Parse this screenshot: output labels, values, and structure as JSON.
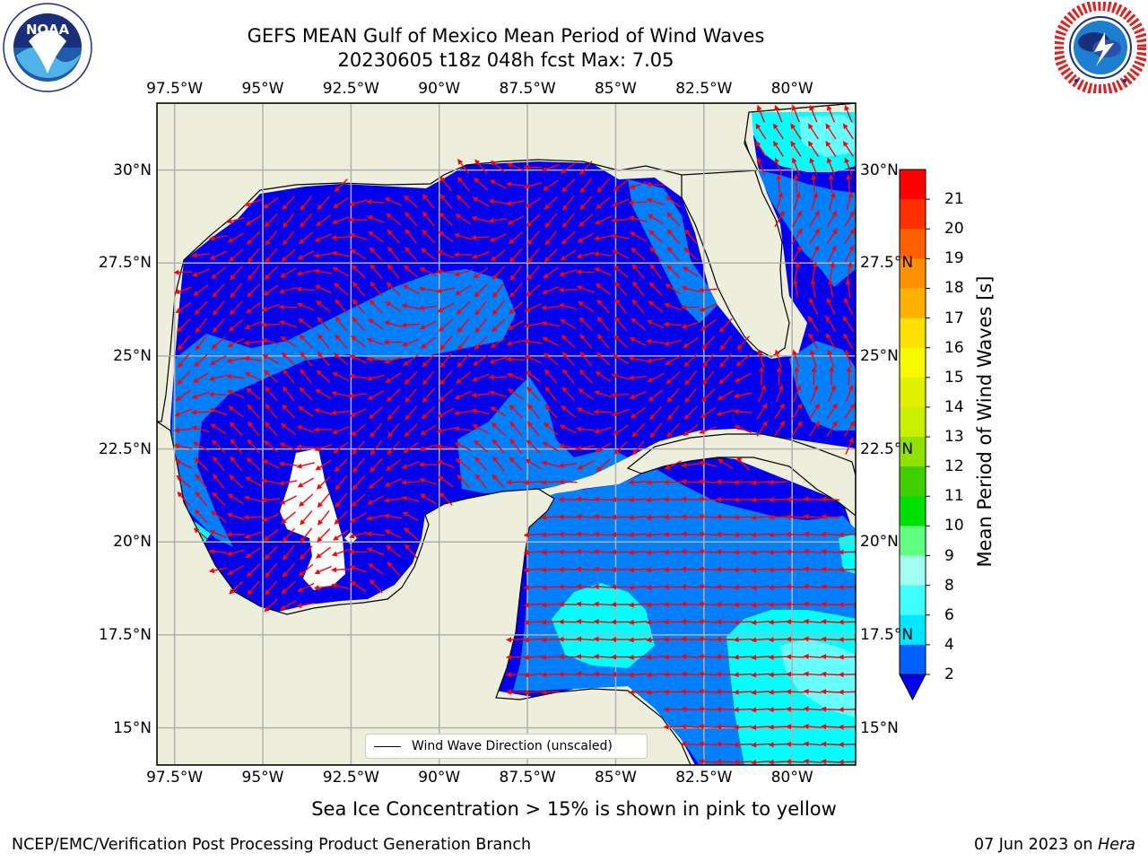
{
  "header": {
    "title_line1": "GEFS MEAN Gulf of Mexico Mean Period of Wind Waves",
    "title_line2": "20230605 t18z 048h fcst   Max: 7.05"
  },
  "logos": {
    "left": {
      "name": "noaa-logo",
      "text": "NOAA",
      "ring_text": "NATIONAL OCEANIC AND ATMOSPHERIC ADMINISTRATION · U.S. DEPARTMENT OF COMMERCE"
    },
    "right": {
      "name": "nws-logo",
      "ring_text": "NATIONAL WEATHER SERVICE"
    }
  },
  "map": {
    "lon_ticks": [
      "97.5°W",
      "95°W",
      "92.5°W",
      "90°W",
      "87.5°W",
      "85°W",
      "82.5°W",
      "80°W"
    ],
    "lat_ticks": [
      "30°N",
      "27.5°N",
      "25°N",
      "22.5°N",
      "20°N",
      "17.5°N",
      "15°N"
    ],
    "lon_range": [
      -98,
      -78.2
    ],
    "lat_range": [
      14.0,
      31.8
    ],
    "grid": true,
    "colors": {
      "land": "#eeeedd",
      "period_2_4": "#0000ee",
      "period_4_6": "#0080ff",
      "period_6_8": "#00ffff",
      "period_8_9": "#66ffff",
      "no_data": "#ffffff",
      "arrows": "#ff0000",
      "coastline": "#000000",
      "gridline": "#b0b0b0"
    },
    "legend_label": "Wind Wave Direction (unscaled)"
  },
  "colorbar": {
    "label": "Mean Period of Wind Waves [s]",
    "ticks": [
      "2",
      "4",
      "6",
      "8",
      "9",
      "10",
      "11",
      "12",
      "13",
      "14",
      "15",
      "16",
      "17",
      "18",
      "19",
      "20",
      "21"
    ],
    "colors": [
      "#0060ff",
      "#00e8ff",
      "#40ffff",
      "#a0fff0",
      "#60ff80",
      "#00e000",
      "#40d000",
      "#90e000",
      "#c8f000",
      "#e0f000",
      "#f8f800",
      "#ffe000",
      "#ffb000",
      "#ff9000",
      "#ff6000",
      "#ff3000",
      "#ff0000"
    ],
    "extend_color": "#0000ee"
  },
  "caption": "Sea Ice Concentration > 15% is shown in pink to yellow",
  "footer": {
    "left": "NCEP/EMC/Verification Post Processing Product Generation Branch",
    "date": "07 Jun 2023 on ",
    "machine": "Hera"
  }
}
